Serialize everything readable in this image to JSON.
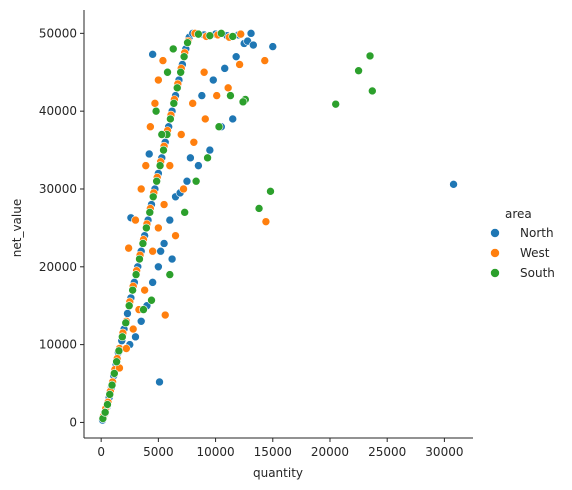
{
  "chart_data": {
    "type": "scatter",
    "title": "",
    "xlabel": "quantity",
    "ylabel": "net_value",
    "xlim": [
      -1500,
      32500
    ],
    "ylim": [
      -2000,
      53000
    ],
    "x_ticks": [
      0,
      5000,
      10000,
      15000,
      20000,
      25000,
      30000
    ],
    "y_ticks": [
      0,
      10000,
      20000,
      30000,
      40000,
      50000
    ],
    "grid": false,
    "legend": {
      "title": "area",
      "placement": "center-right"
    },
    "series": [
      {
        "name": "North",
        "color": "#1f77b4",
        "points": [
          [
            120,
            300
          ],
          [
            300,
            1000
          ],
          [
            500,
            2000
          ],
          [
            700,
            3200
          ],
          [
            900,
            4500
          ],
          [
            1100,
            6000
          ],
          [
            1300,
            7500
          ],
          [
            1500,
            9000
          ],
          [
            1800,
            10500
          ],
          [
            2000,
            12000
          ],
          [
            2300,
            14000
          ],
          [
            2600,
            16000
          ],
          [
            2900,
            18000
          ],
          [
            3200,
            20000
          ],
          [
            3500,
            22000
          ],
          [
            3800,
            24000
          ],
          [
            4100,
            26000
          ],
          [
            4400,
            28000
          ],
          [
            4700,
            30000
          ],
          [
            5000,
            32000
          ],
          [
            5300,
            34000
          ],
          [
            5600,
            36000
          ],
          [
            5900,
            38000
          ],
          [
            6200,
            40000
          ],
          [
            6500,
            42000
          ],
          [
            6800,
            44000
          ],
          [
            7100,
            46000
          ],
          [
            7400,
            48000
          ],
          [
            7700,
            49500
          ],
          [
            8000,
            50000
          ],
          [
            9000,
            49800
          ],
          [
            10000,
            49900
          ],
          [
            11000,
            49700
          ],
          [
            12000,
            49800
          ],
          [
            12500,
            48700
          ],
          [
            12800,
            49000
          ],
          [
            11500,
            39000
          ],
          [
            10500,
            38000
          ],
          [
            9500,
            35000
          ],
          [
            8500,
            33000
          ],
          [
            7500,
            31000
          ],
          [
            6500,
            29000
          ],
          [
            6000,
            26000
          ],
          [
            5500,
            23000
          ],
          [
            5000,
            20000
          ],
          [
            4500,
            18000
          ],
          [
            4000,
            15000
          ],
          [
            3500,
            13000
          ],
          [
            3000,
            11000
          ],
          [
            2500,
            10000
          ],
          [
            2600,
            26300
          ],
          [
            4200,
            34500
          ],
          [
            4500,
            47300
          ],
          [
            5100,
            5200
          ],
          [
            5200,
            22000
          ],
          [
            6200,
            21000
          ],
          [
            6900,
            29500
          ],
          [
            7800,
            34000
          ],
          [
            8800,
            42000
          ],
          [
            9800,
            44000
          ],
          [
            10800,
            45500
          ],
          [
            11800,
            47000
          ],
          [
            13100,
            50000
          ],
          [
            13300,
            48500
          ],
          [
            15000,
            48300
          ],
          [
            30800,
            30600
          ]
        ]
      },
      {
        "name": "West",
        "color": "#ff7f0e",
        "points": [
          [
            200,
            800
          ],
          [
            400,
            1800
          ],
          [
            600,
            2600
          ],
          [
            800,
            4000
          ],
          [
            1000,
            5200
          ],
          [
            1200,
            6800
          ],
          [
            1400,
            8200
          ],
          [
            1600,
            9500
          ],
          [
            1900,
            11500
          ],
          [
            2200,
            13000
          ],
          [
            2500,
            15500
          ],
          [
            2800,
            17500
          ],
          [
            3100,
            19500
          ],
          [
            3400,
            21500
          ],
          [
            3700,
            23500
          ],
          [
            4000,
            25500
          ],
          [
            4300,
            27500
          ],
          [
            4600,
            29500
          ],
          [
            4900,
            31500
          ],
          [
            5200,
            33500
          ],
          [
            5500,
            35500
          ],
          [
            5800,
            37500
          ],
          [
            6100,
            39500
          ],
          [
            6400,
            41500
          ],
          [
            6700,
            43500
          ],
          [
            7000,
            45500
          ],
          [
            7300,
            47500
          ],
          [
            7600,
            49000
          ],
          [
            8200,
            50000
          ],
          [
            9200,
            49600
          ],
          [
            10200,
            49800
          ],
          [
            11200,
            49500
          ],
          [
            12200,
            49900
          ],
          [
            9000,
            45000
          ],
          [
            8000,
            41000
          ],
          [
            7000,
            37000
          ],
          [
            6000,
            33000
          ],
          [
            5500,
            28000
          ],
          [
            5000,
            25000
          ],
          [
            4500,
            22000
          ],
          [
            3800,
            17000
          ],
          [
            3300,
            14500
          ],
          [
            2800,
            12000
          ],
          [
            2200,
            9500
          ],
          [
            1600,
            7000
          ],
          [
            2400,
            22400
          ],
          [
            3000,
            26000
          ],
          [
            3500,
            30000
          ],
          [
            3900,
            33000
          ],
          [
            4300,
            38000
          ],
          [
            4700,
            41000
          ],
          [
            5000,
            44000
          ],
          [
            5400,
            46500
          ],
          [
            5600,
            13800
          ],
          [
            6500,
            24000
          ],
          [
            7200,
            30000
          ],
          [
            8100,
            36000
          ],
          [
            9100,
            39000
          ],
          [
            10100,
            42000
          ],
          [
            11100,
            43000
          ],
          [
            12100,
            46000
          ],
          [
            14300,
            46500
          ],
          [
            14400,
            25800
          ]
        ]
      },
      {
        "name": "South",
        "color": "#2ca02c",
        "points": [
          [
            150,
            500
          ],
          [
            350,
            1300
          ],
          [
            550,
            2300
          ],
          [
            750,
            3600
          ],
          [
            950,
            4800
          ],
          [
            1150,
            6300
          ],
          [
            1350,
            7800
          ],
          [
            1550,
            9200
          ],
          [
            1850,
            11000
          ],
          [
            2150,
            12800
          ],
          [
            2450,
            15000
          ],
          [
            2750,
            17000
          ],
          [
            3050,
            19000
          ],
          [
            3350,
            21000
          ],
          [
            3650,
            23000
          ],
          [
            3950,
            25000
          ],
          [
            4250,
            27000
          ],
          [
            4550,
            29000
          ],
          [
            4850,
            31000
          ],
          [
            5150,
            33000
          ],
          [
            5450,
            35000
          ],
          [
            5750,
            37000
          ],
          [
            6050,
            39000
          ],
          [
            6350,
            41000
          ],
          [
            6650,
            43000
          ],
          [
            6950,
            45000
          ],
          [
            7250,
            47000
          ],
          [
            7550,
            48800
          ],
          [
            8500,
            49900
          ],
          [
            9500,
            49700
          ],
          [
            10500,
            50000
          ],
          [
            11500,
            49600
          ],
          [
            12600,
            41500
          ],
          [
            12400,
            41200
          ],
          [
            4400,
            15700
          ],
          [
            3700,
            14500
          ],
          [
            6000,
            19000
          ],
          [
            7300,
            27000
          ],
          [
            8300,
            31000
          ],
          [
            9300,
            34000
          ],
          [
            10300,
            38000
          ],
          [
            11300,
            42000
          ],
          [
            5300,
            37000
          ],
          [
            4800,
            40000
          ],
          [
            5800,
            45000
          ],
          [
            6300,
            48000
          ],
          [
            13800,
            27500
          ],
          [
            14800,
            29700
          ],
          [
            20500,
            40900
          ],
          [
            22500,
            45200
          ],
          [
            23500,
            47100
          ],
          [
            23700,
            42600
          ]
        ]
      }
    ]
  }
}
